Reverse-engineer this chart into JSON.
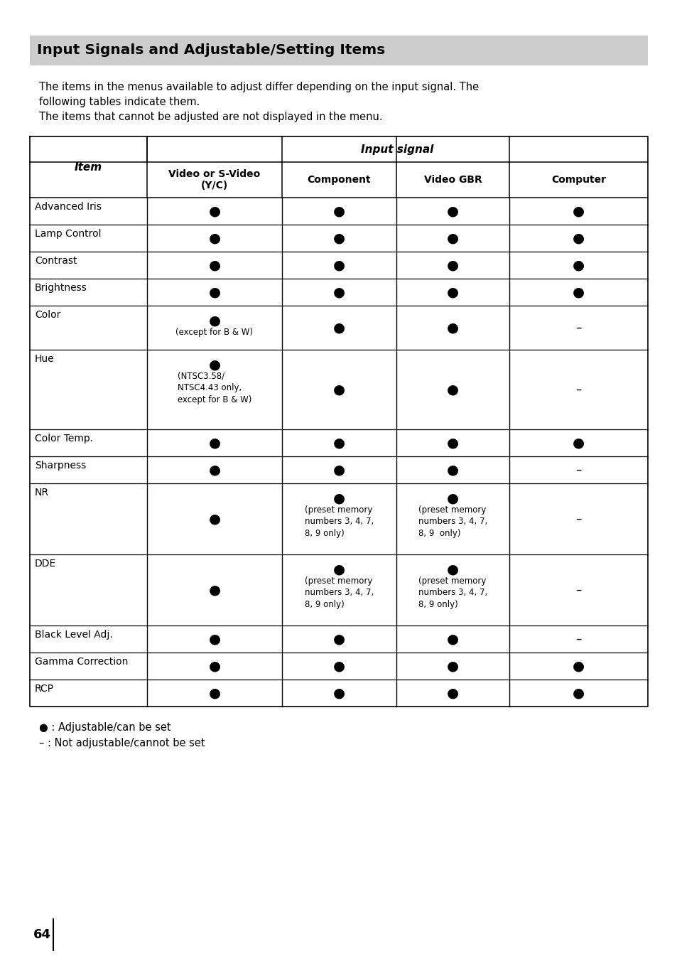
{
  "title": "Input Signals and Adjustable/Setting Items",
  "title_bg": "#cccccc",
  "intro_lines": [
    "The items in the menus available to adjust differ depending on the input signal. The",
    "following tables indicate them.",
    "The items that cannot be adjusted are not displayed in the menu."
  ],
  "rows": [
    {
      "item": "Advanced Iris",
      "c1": "b",
      "c2": "b",
      "c3": "b",
      "c4": "b"
    },
    {
      "item": "Lamp Control",
      "c1": "b",
      "c2": "b",
      "c3": "b",
      "c4": "b"
    },
    {
      "item": "Contrast",
      "c1": "b",
      "c2": "b",
      "c3": "b",
      "c4": "b"
    },
    {
      "item": "Brightness",
      "c1": "b",
      "c2": "b",
      "c3": "b",
      "c4": "b"
    },
    {
      "item": "Color",
      "c1": "b_exc",
      "c2": "b",
      "c3": "b",
      "c4": "d"
    },
    {
      "item": "Hue",
      "c1": "b_hue",
      "c2": "b",
      "c3": "b",
      "c4": "d"
    },
    {
      "item": "Color Temp.",
      "c1": "b",
      "c2": "b",
      "c3": "b",
      "c4": "b"
    },
    {
      "item": "Sharpness",
      "c1": "b",
      "c2": "b",
      "c3": "b",
      "c4": "d"
    },
    {
      "item": "NR",
      "c1": "b",
      "c2": "b_pre1",
      "c3": "b_pre2",
      "c4": "d"
    },
    {
      "item": "DDE",
      "c1": "b",
      "c2": "b_pre1",
      "c3": "b_pre1",
      "c4": "d"
    },
    {
      "item": "Black Level Adj.",
      "c1": "b",
      "c2": "b",
      "c3": "b",
      "c4": "d"
    },
    {
      "item": "Gamma Correction",
      "c1": "b",
      "c2": "b",
      "c3": "b",
      "c4": "b"
    },
    {
      "item": "RCP",
      "c1": "b",
      "c2": "b",
      "c3": "b",
      "c4": "b"
    }
  ],
  "cell_notes": {
    "b_exc": "(except for B & W)",
    "b_hue": "(NTSC3.58/\nNTSC4.43 only,\nexcept for B & W)",
    "b_pre1": "(preset memory\nnumbers 3, 4, 7,\n8, 9 only)",
    "b_pre2": "(preset memory\nnumbers 3, 4, 7,\n8, 9  only)"
  },
  "legend_lines": [
    "● : Adjustable/can be set",
    "– : Not adjustable/cannot be set"
  ],
  "page_number": "64"
}
